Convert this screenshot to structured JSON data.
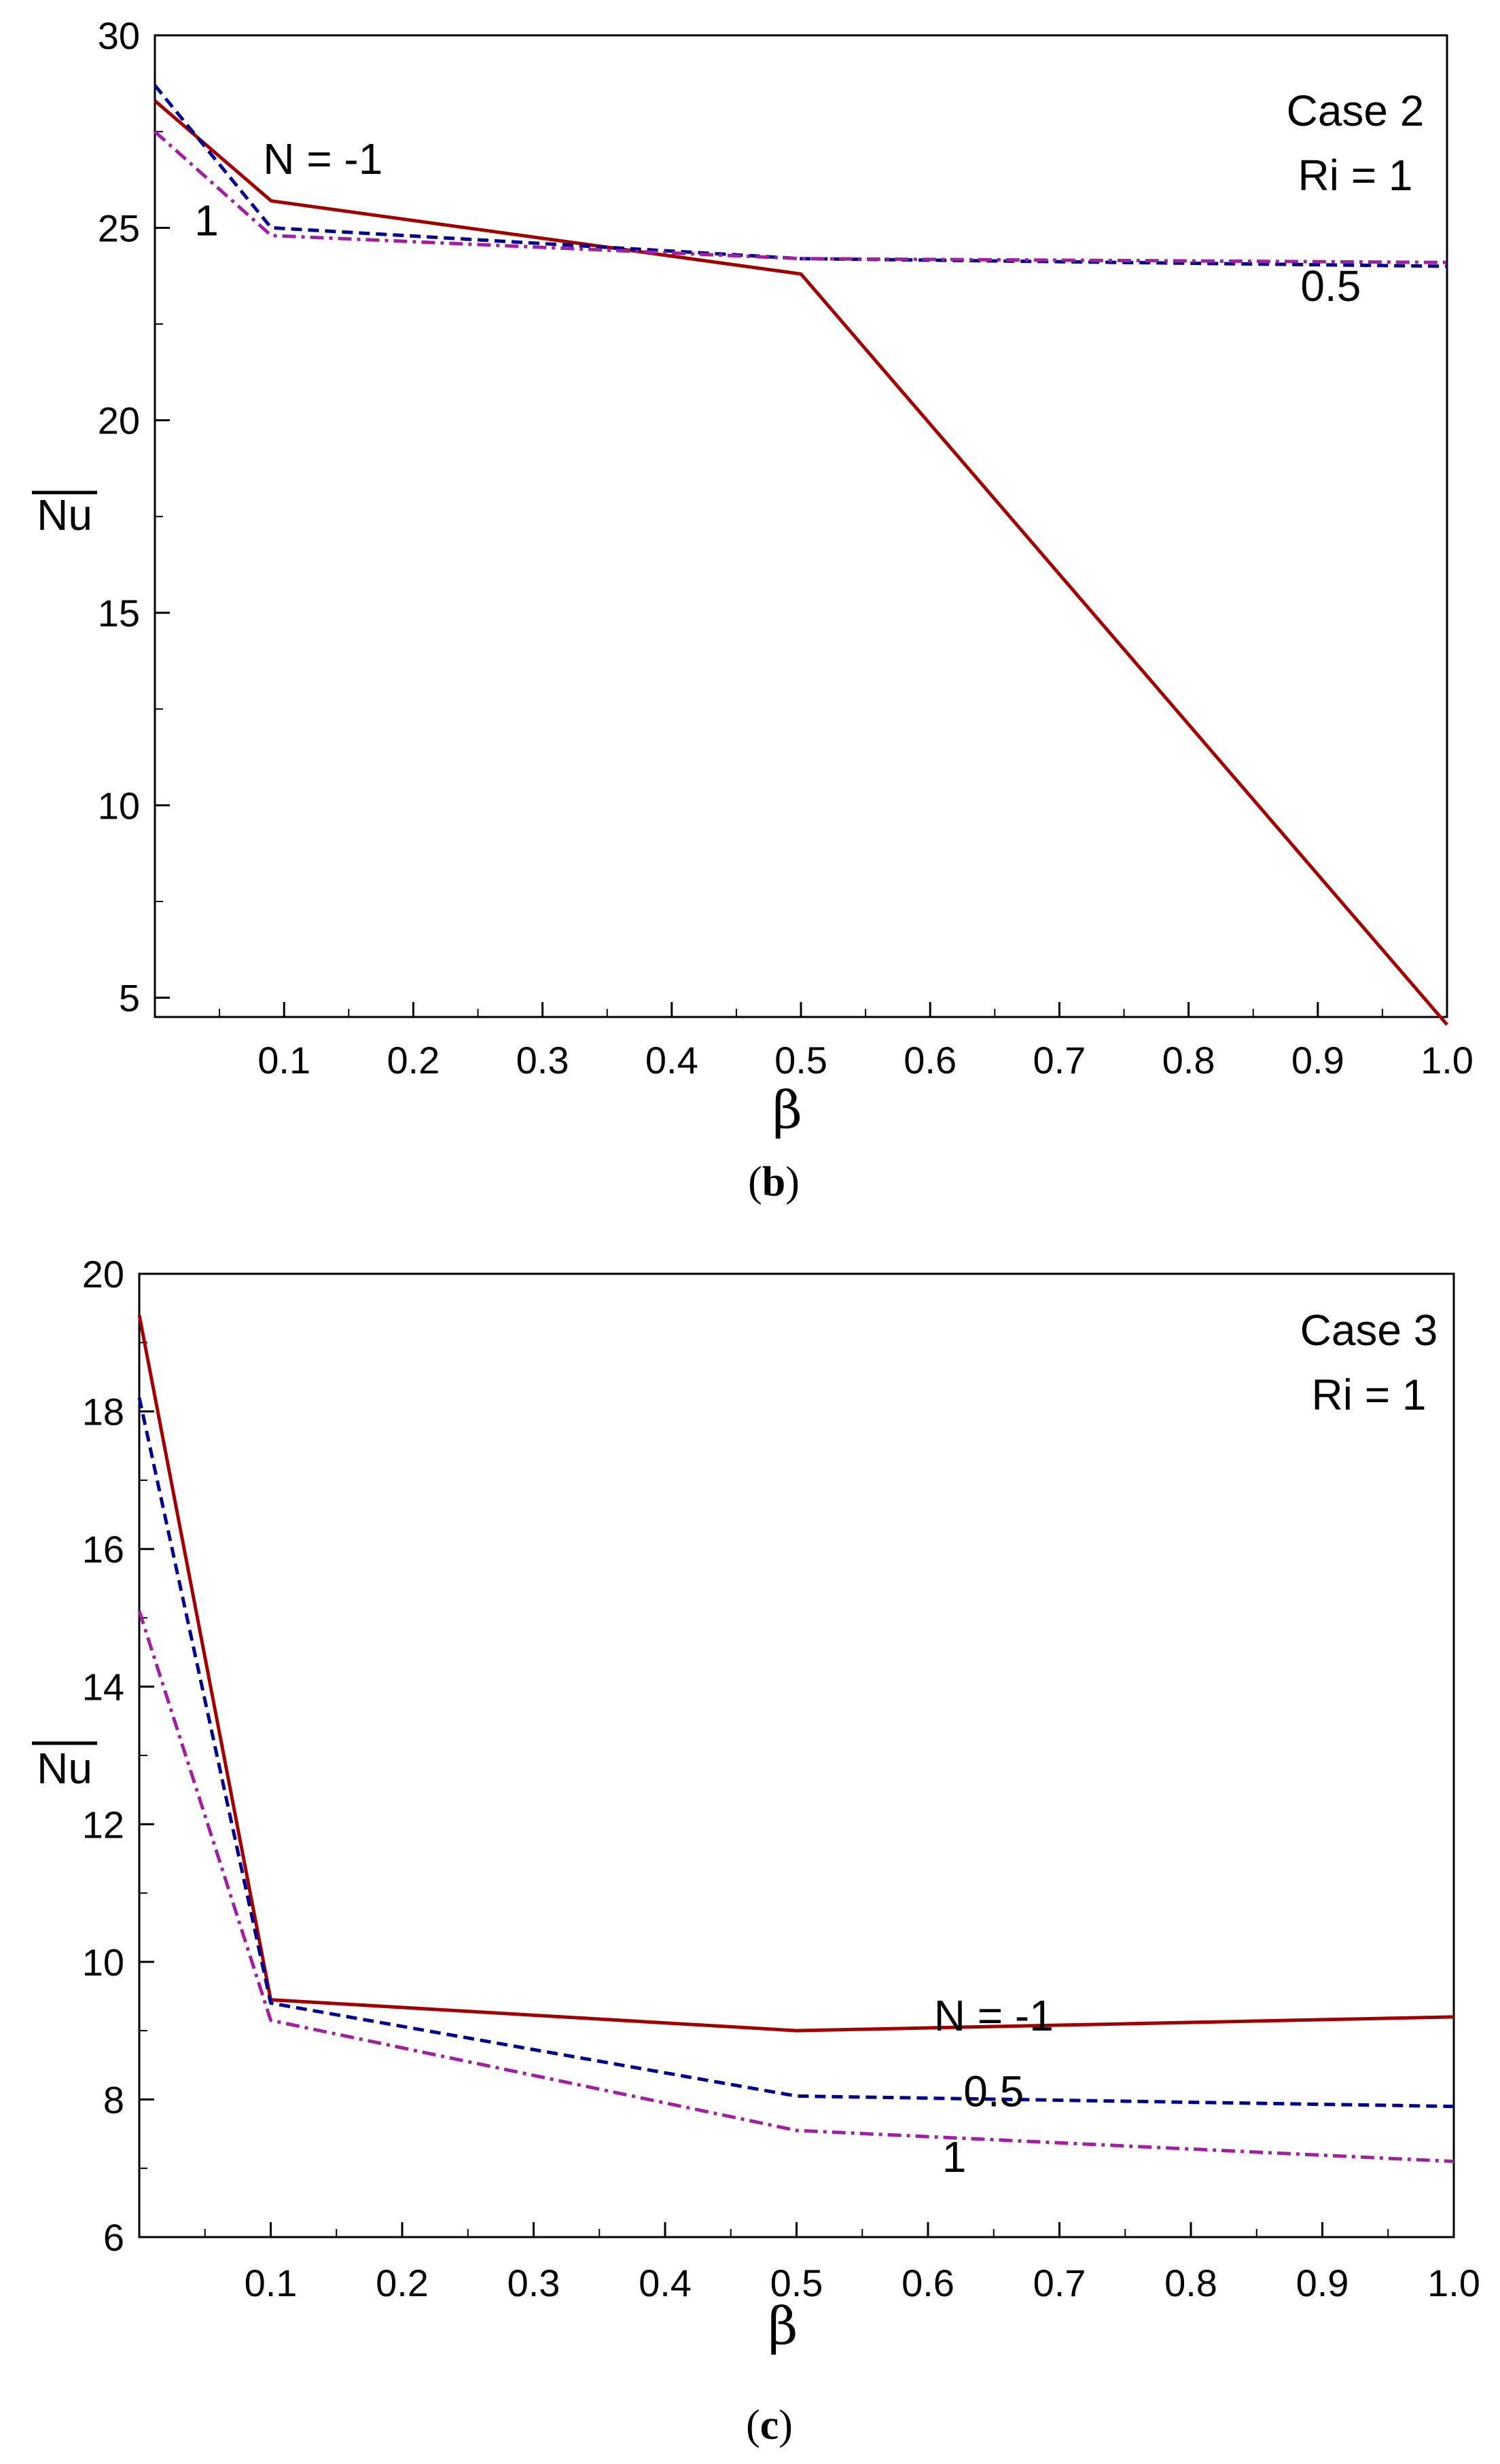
{
  "chart_data": [
    {
      "type": "line",
      "panel_caption": "(b)",
      "caption_letter": "b",
      "annotations": [
        "Case 2",
        "Ri = 1"
      ],
      "xlabel": "β",
      "ylabel": "Nu",
      "xlim": [
        0,
        1.0
      ],
      "ylim": [
        4.5,
        30
      ],
      "xticks": [
        "0.1",
        "0.2",
        "0.3",
        "0.4",
        "0.5",
        "0.6",
        "0.7",
        "0.8",
        "0.9",
        "1.0"
      ],
      "yticks": [
        "5",
        "10",
        "15",
        "20",
        "25",
        "30"
      ],
      "grid": false,
      "series": [
        {
          "name": "N = -1",
          "color": "#a00000",
          "dash": "solid",
          "x": [
            0.0,
            0.09,
            0.5,
            1.0
          ],
          "y": [
            28.3,
            25.7,
            23.8,
            4.3
          ]
        },
        {
          "name": "0.5",
          "color": "#00008b",
          "dash": "dashed",
          "x": [
            0.0,
            0.09,
            0.5,
            1.0
          ],
          "y": [
            28.7,
            25.0,
            24.2,
            24.0
          ]
        },
        {
          "name": "1",
          "color": "#a020a0",
          "dash": "dashdot",
          "x": [
            0.0,
            0.09,
            0.5,
            1.0
          ],
          "y": [
            27.5,
            24.8,
            24.2,
            24.1
          ]
        }
      ],
      "series_labels": [
        {
          "text": "N = -1",
          "x": 0.13,
          "y": 26.4
        },
        {
          "text": "0.5",
          "x": 0.91,
          "y": 23.1
        },
        {
          "text": "1",
          "x": 0.04,
          "y": 24.8
        }
      ]
    },
    {
      "type": "line",
      "panel_caption": "(c)",
      "caption_letter": "c",
      "annotations": [
        "Case 3",
        "Ri = 1"
      ],
      "xlabel": "β",
      "ylabel": "Nu",
      "xlim": [
        0,
        1.0
      ],
      "ylim": [
        6,
        20
      ],
      "xticks": [
        "0.1",
        "0.2",
        "0.3",
        "0.4",
        "0.5",
        "0.6",
        "0.7",
        "0.8",
        "0.9",
        "1.0"
      ],
      "yticks": [
        "6",
        "8",
        "10",
        "12",
        "14",
        "16",
        "18",
        "20"
      ],
      "grid": false,
      "series": [
        {
          "name": "N = -1",
          "color": "#a00000",
          "dash": "solid",
          "x": [
            0.0,
            0.1,
            0.5,
            1.0
          ],
          "y": [
            19.4,
            9.45,
            9.0,
            9.2
          ]
        },
        {
          "name": "0.5",
          "color": "#00008b",
          "dash": "dashed",
          "x": [
            0.0,
            0.1,
            0.5,
            1.0
          ],
          "y": [
            18.2,
            9.4,
            8.05,
            7.9
          ]
        },
        {
          "name": "1",
          "color": "#a020a0",
          "dash": "dashdot",
          "x": [
            0.0,
            0.1,
            0.5,
            1.0
          ],
          "y": [
            15.1,
            9.15,
            7.55,
            7.1
          ]
        }
      ],
      "series_labels": [
        {
          "text": "N = -1",
          "x": 0.65,
          "y": 9.0
        },
        {
          "text": "0.5",
          "x": 0.65,
          "y": 7.9
        },
        {
          "text": "1",
          "x": 0.62,
          "y": 6.95
        }
      ]
    }
  ]
}
